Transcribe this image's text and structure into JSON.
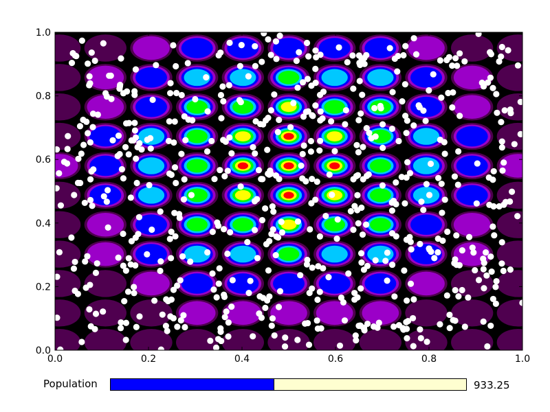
{
  "chart_data": {
    "type": "heatmap",
    "title": "",
    "xlabel": "",
    "ylabel": "",
    "xlim": [
      0.0,
      1.0
    ],
    "ylim": [
      0.0,
      1.0
    ],
    "x_ticks": [
      "0.0",
      "0.2",
      "0.4",
      "0.6",
      "0.8",
      "1.0"
    ],
    "y_ticks": [
      "0.0",
      "0.2",
      "0.4",
      "0.6",
      "0.8",
      "1.0"
    ],
    "grid": false,
    "heatmap": {
      "description": "periodic fitness landscape, peaks on a regular grid, strongest at center",
      "peak_columns": 10,
      "peak_rows": 10,
      "center": [
        0.5,
        0.58
      ],
      "colormap": [
        "#000000",
        "#6a006a",
        "#9b00c8",
        "#0000ff",
        "#00c8ff",
        "#00ff00",
        "#ffff00",
        "#ff0000"
      ],
      "background": "#000000"
    },
    "scatter": {
      "name": "",
      "color": "#ffffff",
      "count": 620,
      "distribution": "swarm spread over the whole domain"
    }
  },
  "population_bar": {
    "label": "Population",
    "value": "933.25",
    "fraction": 0.46,
    "fill_color": "#0000ff",
    "track_color": "#fefed0"
  }
}
